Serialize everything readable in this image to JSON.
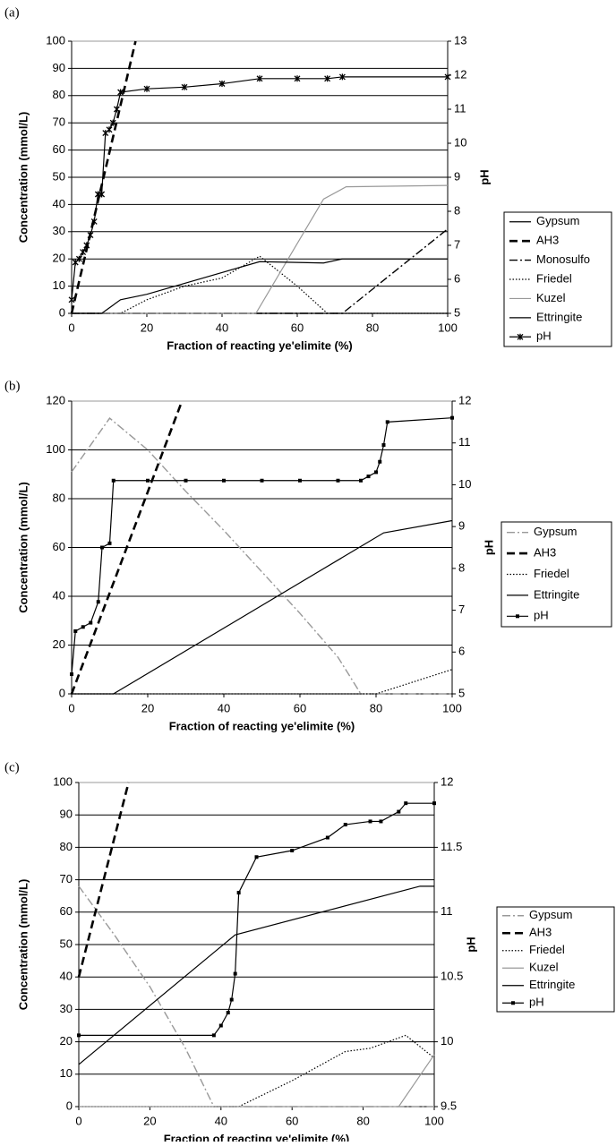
{
  "chart_data": [
    {
      "type": "line",
      "label": "(a)",
      "x_label": "Fraction of reacting ye'elimite (%)",
      "y_label": "Concentration (mmol/L)",
      "y2_label": "pH",
      "xlim": [
        0,
        100
      ],
      "xticks": [
        0,
        20,
        40,
        60,
        80,
        100
      ],
      "ylim": [
        0,
        100
      ],
      "yticks": [
        0,
        10,
        20,
        30,
        40,
        50,
        60,
        70,
        80,
        90,
        100
      ],
      "y2lim": [
        5,
        13
      ],
      "y2ticks": [
        5,
        6,
        7,
        8,
        9,
        10,
        11,
        12,
        13
      ],
      "grid": true,
      "series": [
        {
          "name": "Gypsum",
          "color": "#000000",
          "style": "solid",
          "x": [
            0,
            100
          ],
          "values": [
            0,
            0
          ]
        },
        {
          "name": "AH3",
          "color": "#000000",
          "style": "dash",
          "x": [
            0,
            17
          ],
          "values": [
            0,
            100
          ]
        },
        {
          "name": "Monosulfo",
          "color": "#000000",
          "style": "dashdot",
          "x": [
            0,
            72,
            100
          ],
          "values": [
            0,
            0,
            31
          ]
        },
        {
          "name": "Friedel",
          "color": "#000000",
          "style": "dot",
          "x": [
            0,
            13,
            20,
            30,
            40,
            50,
            60,
            68,
            100
          ],
          "values": [
            0,
            0,
            5,
            10,
            13,
            21,
            10,
            0,
            0
          ]
        },
        {
          "name": "Kuzel",
          "color": "#999999",
          "style": "solid",
          "x": [
            0,
            49,
            67,
            73,
            100
          ],
          "values": [
            0,
            0,
            42,
            46.5,
            47
          ]
        },
        {
          "name": "Ettringite",
          "color": "#000000",
          "style": "solid",
          "x": [
            0,
            8,
            13,
            20,
            50,
            67,
            72,
            100
          ],
          "values": [
            0,
            0,
            5,
            7,
            19,
            18.5,
            20,
            20
          ]
        },
        {
          "name": "pH",
          "color": "#000000",
          "style": "solid",
          "marker": "star",
          "axis": "y2",
          "x": [
            0,
            1,
            2,
            3,
            4,
            5,
            6,
            7,
            8,
            9,
            10,
            11,
            12,
            13,
            20,
            30,
            40,
            50,
            60,
            68,
            72,
            100
          ],
          "values": [
            5.4,
            6.5,
            6.6,
            6.8,
            7.0,
            7.3,
            7.7,
            8.5,
            8.5,
            10.3,
            10.4,
            10.6,
            11.0,
            11.5,
            11.6,
            11.65,
            11.75,
            11.9,
            11.9,
            11.9,
            11.95,
            11.95
          ]
        }
      ]
    },
    {
      "type": "line",
      "label": "(b)",
      "x_label": "Fraction of reacting ye'elimite (%)",
      "y_label": "Concentration (mmol/L)",
      "y2_label": "pH",
      "xlim": [
        0,
        100
      ],
      "xticks": [
        0,
        20,
        40,
        60,
        80,
        100
      ],
      "ylim": [
        0,
        120
      ],
      "yticks": [
        0,
        20,
        40,
        60,
        80,
        100,
        120
      ],
      "y2lim": [
        5,
        12
      ],
      "y2ticks": [
        5,
        6,
        7,
        8,
        9,
        10,
        11,
        12
      ],
      "grid": true,
      "series": [
        {
          "name": "Gypsum",
          "color": "#999999",
          "style": "dashdot",
          "x": [
            0,
            10,
            20,
            30,
            40,
            50,
            60,
            70,
            76,
            100
          ],
          "values": [
            91,
            113,
            100,
            83,
            67,
            50,
            33,
            15,
            0,
            0
          ]
        },
        {
          "name": "AH3",
          "color": "#000000",
          "style": "dash",
          "x": [
            0,
            29
          ],
          "values": [
            0,
            120
          ]
        },
        {
          "name": "Friedel",
          "color": "#000000",
          "style": "dot",
          "x": [
            0,
            80,
            100
          ],
          "values": [
            0,
            0,
            10
          ]
        },
        {
          "name": "Ettringite",
          "color": "#000000",
          "style": "solid",
          "x": [
            0,
            11,
            82,
            100
          ],
          "values": [
            0,
            0,
            66,
            71
          ]
        },
        {
          "name": "pH",
          "color": "#000000",
          "style": "solid",
          "marker": "square",
          "axis": "y2",
          "x": [
            0,
            1,
            3,
            5,
            7,
            8,
            10,
            11,
            20,
            30,
            40,
            50,
            60,
            70,
            76,
            78,
            80,
            81,
            82,
            83,
            100
          ],
          "values": [
            5.47,
            6.5,
            6.6,
            6.7,
            7.2,
            8.5,
            8.6,
            10.1,
            10.1,
            10.1,
            10.1,
            10.1,
            10.1,
            10.1,
            10.1,
            10.2,
            10.3,
            10.55,
            10.95,
            11.5,
            11.6
          ]
        }
      ]
    },
    {
      "type": "line",
      "label": "(c)",
      "x_label": "Fraction of reacting ye'elimite (%)",
      "y_label": "Concentration (mmol/L)",
      "y2_label": "pH",
      "xlim": [
        0,
        100
      ],
      "xticks": [
        0,
        20,
        40,
        60,
        80,
        100
      ],
      "ylim": [
        0,
        100
      ],
      "yticks": [
        0,
        10,
        20,
        30,
        40,
        50,
        60,
        70,
        80,
        90,
        100
      ],
      "y2lim": [
        9.5,
        12
      ],
      "y2ticks": [
        9.5,
        10,
        10.5,
        11,
        11.5,
        12
      ],
      "grid": true,
      "series": [
        {
          "name": "Gypsum",
          "color": "#999999",
          "style": "dashdot",
          "x": [
            0,
            10,
            20,
            30,
            38,
            100
          ],
          "values": [
            68,
            53,
            37,
            18,
            0,
            0
          ]
        },
        {
          "name": "AH3",
          "color": "#000000",
          "style": "dash",
          "x": [
            0,
            14
          ],
          "values": [
            40,
            100
          ]
        },
        {
          "name": "Friedel",
          "color": "#000000",
          "style": "dot",
          "x": [
            0,
            45,
            60,
            75,
            82,
            92,
            100
          ],
          "values": [
            0,
            0,
            8,
            17,
            18,
            22,
            15
          ]
        },
        {
          "name": "Kuzel",
          "color": "#999999",
          "style": "solid",
          "x": [
            0,
            90,
            100
          ],
          "values": [
            0,
            0,
            16
          ]
        },
        {
          "name": "Ettringite",
          "color": "#000000",
          "style": "solid",
          "x": [
            0,
            44,
            96,
            100
          ],
          "values": [
            13,
            53,
            68,
            68
          ]
        },
        {
          "name": "pH",
          "color": "#000000",
          "style": "solid",
          "marker": "square",
          "axis": "y2",
          "x": [
            0,
            38,
            40,
            42,
            43,
            44,
            45,
            50,
            60,
            70,
            75,
            82,
            85,
            90,
            92,
            100
          ],
          "values": [
            10.05,
            10.05,
            10.125,
            10.225,
            10.325,
            10.525,
            11.15,
            11.425,
            11.475,
            11.575,
            11.675,
            11.7,
            11.7,
            11.775,
            11.84,
            11.84
          ]
        }
      ]
    }
  ]
}
